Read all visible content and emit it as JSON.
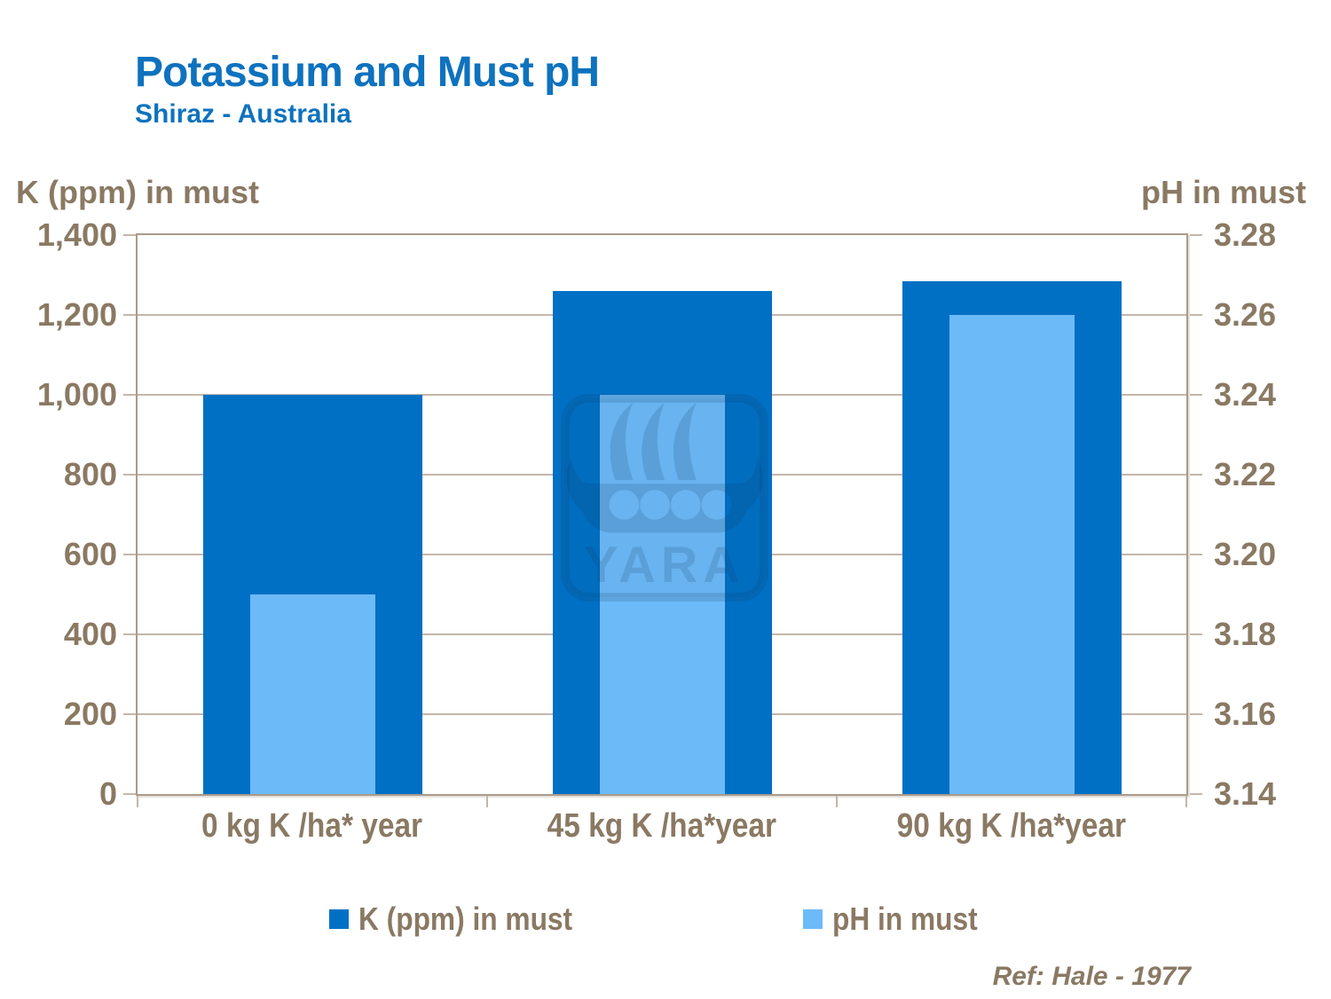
{
  "page": {
    "title": "Potassium and Must pH",
    "subtitle": "Shiraz - Australia",
    "reference": "Ref: Hale - 1977",
    "watermark": "YARA"
  },
  "colors": {
    "title_blue": "#0E72BE",
    "k_bar_blue": "#0070C5",
    "ph_bar_blue": "#6DBAF8",
    "axis_text_brown": "#8A7963",
    "gridline": "#C3B7A9",
    "plot_border": "#A89B8C"
  },
  "chart_data": {
    "type": "bar",
    "title": "Potassium and Must pH",
    "subtitle": "Shiraz - Australia",
    "categories": [
      "0 kg K /ha* year",
      "45 kg K /ha*year",
      "90 kg K /ha*year"
    ],
    "series": [
      {
        "name": "K (ppm) in must",
        "axis": "left",
        "color": "#0070C5",
        "values": [
          1000,
          1260,
          1285
        ]
      },
      {
        "name": "pH in must",
        "axis": "right",
        "color": "#6DBAF8",
        "values": [
          3.19,
          3.24,
          3.26
        ]
      }
    ],
    "left_axis": {
      "title": "K (ppm) in must",
      "min": 0,
      "max": 1400,
      "step": 200,
      "tick_labels": [
        "1,400",
        "1,200",
        "1,000",
        "800",
        "600",
        "400",
        "200",
        "0"
      ]
    },
    "right_axis": {
      "title": "pH in must",
      "min": 3.14,
      "max": 3.28,
      "step": 0.02,
      "tick_labels": [
        "3.28",
        "3.26",
        "3.24",
        "3.22",
        "3.20",
        "3.18",
        "3.16",
        "3.14"
      ]
    },
    "grid": "horizontal",
    "legend": {
      "position": "bottom",
      "entries": [
        "K (ppm) in must",
        "pH in must"
      ]
    },
    "annotation": "Ref: Hale - 1977",
    "watermark": "YARA"
  }
}
